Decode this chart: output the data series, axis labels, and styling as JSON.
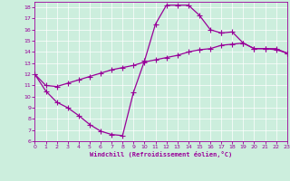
{
  "bg_color": "#cceedd",
  "line_color": "#990099",
  "xlabel": "Windchill (Refroidissement éolien,°C)",
  "xlim": [
    0,
    23
  ],
  "ylim": [
    6,
    18.5
  ],
  "xticks": [
    0,
    1,
    2,
    3,
    4,
    5,
    6,
    7,
    8,
    9,
    10,
    11,
    12,
    13,
    14,
    15,
    16,
    17,
    18,
    19,
    20,
    21,
    22,
    23
  ],
  "yticks": [
    6,
    7,
    8,
    9,
    10,
    11,
    12,
    13,
    14,
    15,
    16,
    17,
    18
  ],
  "seg1_x": [
    0,
    1,
    2,
    3,
    4,
    5,
    6,
    7,
    8,
    9,
    10,
    11,
    12,
    13,
    14,
    15,
    16,
    17
  ],
  "seg1_y": [
    12,
    10.5,
    9.5,
    9.0,
    8.3,
    7.5,
    6.9,
    6.6,
    6.5,
    10.4,
    13.2,
    16.5,
    18.2,
    18.2,
    18.2,
    17.3,
    16.0,
    15.7
  ],
  "seg2_x": [
    17,
    18,
    19,
    20,
    21,
    22,
    23
  ],
  "seg2_y": [
    15.7,
    15.8,
    14.8,
    14.3,
    14.3,
    14.3,
    13.9
  ],
  "seg3_x": [
    0,
    1,
    2,
    3,
    4,
    5,
    6,
    7,
    8,
    9,
    10,
    11,
    12,
    13,
    14,
    15,
    16,
    17,
    18,
    19,
    20,
    21,
    22,
    23
  ],
  "seg3_y": [
    12,
    11.0,
    10.9,
    11.2,
    11.5,
    11.8,
    12.1,
    12.4,
    12.6,
    12.8,
    13.1,
    13.3,
    13.5,
    13.7,
    14.0,
    14.2,
    14.3,
    14.6,
    14.7,
    14.8,
    14.3,
    14.3,
    14.2,
    13.9
  ]
}
